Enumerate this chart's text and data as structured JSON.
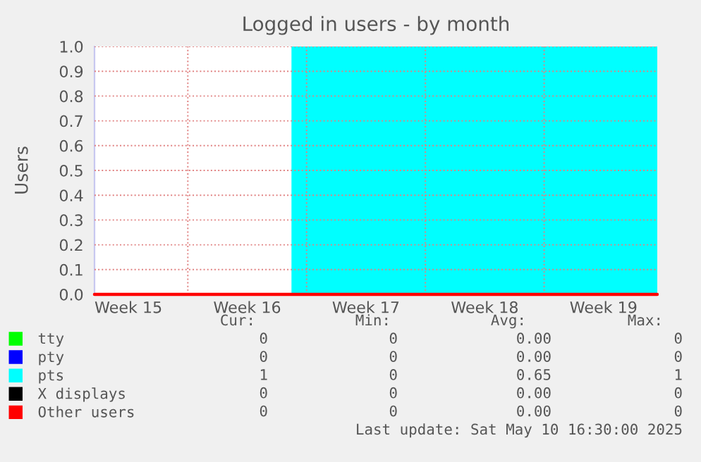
{
  "chart_data": {
    "type": "area",
    "title": "Logged in users - by month",
    "ylabel": "Users",
    "xlim": [
      "2025-04-08T12:00",
      "2025-05-11T16:00"
    ],
    "ylim": [
      0,
      1.0
    ],
    "xticks": [
      {
        "value": "2025-04-10T12:00",
        "label": "Week 15"
      },
      {
        "value": "2025-04-14",
        "label": null
      },
      {
        "value": "2025-04-17T12:00",
        "label": "Week 16"
      },
      {
        "value": "2025-04-21",
        "label": null
      },
      {
        "value": "2025-04-24T12:00",
        "label": "Week 17"
      },
      {
        "value": "2025-04-28",
        "label": null
      },
      {
        "value": "2025-05-01T12:00",
        "label": "Week 18"
      },
      {
        "value": "2025-05-05",
        "label": null
      },
      {
        "value": "2025-05-08T12:00",
        "label": "Week 19"
      }
    ],
    "yticks": [
      {
        "value": 0,
        "label": "0.0"
      },
      0.1,
      0.2,
      0.3,
      0.4,
      0.5,
      0.6,
      0.7,
      0.8,
      0.9,
      {
        "value": 1,
        "label": "1.0"
      }
    ],
    "series": [
      {
        "name": "tty",
        "type": "line",
        "color": "#00ff00"
      },
      {
        "name": "pty",
        "type": "line",
        "color": "#0000ff"
      },
      {
        "name": "pts",
        "color": "#00ffff",
        "x": [
          "2025-04-08T12:00",
          "2025-04-20T04:00",
          "2025-04-20T04:00",
          "2025-05-11T16:00"
        ],
        "values": [
          0,
          0,
          1,
          1
        ]
      },
      {
        "name": "X displays",
        "type": "line",
        "color": "#000000"
      },
      {
        "name": "Other users",
        "type": "line",
        "color": "#ff0000",
        "x": [
          "2025-04-08T12:00",
          "2025-05-11T16:00"
        ],
        "values": [
          0,
          0
        ]
      }
    ],
    "grid": true,
    "legend": "bottom left",
    "annotations": [
      "Cur:",
      "Min:",
      "Avg:",
      "Max:",
      "0",
      "0",
      "0.00",
      "0",
      "0",
      "0",
      "0.00",
      "0",
      "1",
      "0",
      "0.65",
      "1",
      "0",
      "0",
      "0.00",
      "0",
      "0",
      "0",
      "0.00",
      "0",
      "Last update: Sat May 10 16:30:00 2025"
    ]
  }
}
